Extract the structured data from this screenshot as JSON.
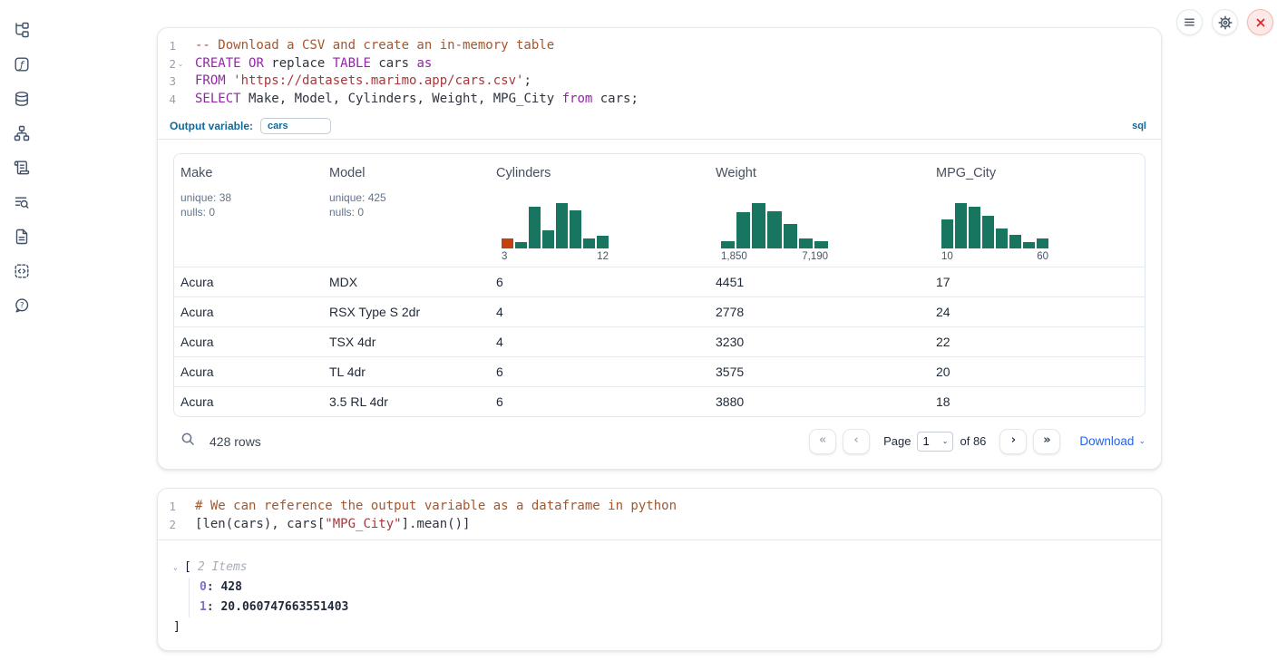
{
  "colors": {
    "hist_green": "#177560",
    "hist_orange": "#c2410c",
    "accent_blue": "#0e6a9b",
    "link_blue": "#2563eb"
  },
  "sidebar": {
    "items": [
      "file-tree-icon",
      "functions-icon",
      "database-icon",
      "dependency-graph-icon",
      "scratchpad-icon",
      "logs-icon",
      "documentation-icon",
      "snippets-icon",
      "help-icon"
    ]
  },
  "topbar": {
    "buttons": [
      "menu-icon",
      "settings-gear-icon",
      "shutdown-x-icon"
    ]
  },
  "sql_cell": {
    "gutter": [
      {
        "n": "1",
        "f": ""
      },
      {
        "n": "2",
        "f": "⌄"
      },
      {
        "n": "3",
        "f": ""
      },
      {
        "n": "4",
        "f": ""
      }
    ],
    "code": [
      [
        {
          "t": "-- Download a CSV and create an in-memory table",
          "c": "com"
        }
      ],
      [
        {
          "t": "CREATE",
          "c": "kw"
        },
        {
          "t": " "
        },
        {
          "t": "OR",
          "c": "kw"
        },
        {
          "t": " replace "
        },
        {
          "t": "TABLE",
          "c": "kw"
        },
        {
          "t": " cars "
        },
        {
          "t": "as",
          "c": "kw"
        }
      ],
      [
        {
          "t": "FROM",
          "c": "kw"
        },
        {
          "t": " "
        },
        {
          "t": "'https://datasets.marimo.app/cars.csv'",
          "c": "str"
        },
        {
          "t": ";"
        }
      ],
      [
        {
          "t": "SELECT",
          "c": "kw"
        },
        {
          "t": " Make, Model, Cylinders, Weight, MPG_City "
        },
        {
          "t": "from",
          "c": "kw"
        },
        {
          "t": " cars;"
        }
      ]
    ],
    "output_variable": {
      "label": "Output variable:",
      "value": "cars"
    },
    "language_tag": "sql",
    "table": {
      "columns": [
        {
          "name": "Make",
          "stats": [
            "unique: 38",
            "nulls: 0"
          ]
        },
        {
          "name": "Model",
          "stats": [
            "unique: 425",
            "nulls: 0"
          ]
        },
        {
          "name": "Cylinders",
          "hist": {
            "min_label": "3",
            "max_label": "12",
            "bars": [
              {
                "h": 21,
                "c": "#c2410c"
              },
              {
                "h": 13
              },
              {
                "h": 88
              },
              {
                "h": 38
              },
              {
                "h": 96
              },
              {
                "h": 81
              },
              {
                "h": 21
              },
              {
                "h": 27
              }
            ]
          }
        },
        {
          "name": "Weight",
          "hist": {
            "min_label": "1,850",
            "max_label": "7,190",
            "bars": [
              {
                "h": 15
              },
              {
                "h": 77
              },
              {
                "h": 96
              },
              {
                "h": 79
              },
              {
                "h": 52
              },
              {
                "h": 21
              },
              {
                "h": 15
              }
            ]
          }
        },
        {
          "name": "MPG_City",
          "hist": {
            "min_label": "10",
            "max_label": "60",
            "bars": [
              {
                "h": 62
              },
              {
                "h": 96
              },
              {
                "h": 88
              },
              {
                "h": 69
              },
              {
                "h": 42
              },
              {
                "h": 29
              },
              {
                "h": 13
              },
              {
                "h": 21
              }
            ]
          }
        }
      ],
      "rows": [
        [
          "Acura",
          "MDX",
          "6",
          "4451",
          "17"
        ],
        [
          "Acura",
          "RSX Type S 2dr",
          "4",
          "2778",
          "24"
        ],
        [
          "Acura",
          "TSX 4dr",
          "4",
          "3230",
          "22"
        ],
        [
          "Acura",
          "TL 4dr",
          "6",
          "3575",
          "20"
        ],
        [
          "Acura",
          "3.5 RL 4dr",
          "6",
          "3880",
          "18"
        ]
      ],
      "footer": {
        "row_count": "428 rows",
        "first_glyph": "«",
        "prev_glyph": "‹",
        "next_glyph": "›",
        "last_glyph": "»",
        "page_label": "Page",
        "page_value": "1",
        "select_chevron": "⌄",
        "of_label": "of 86",
        "download_label": "Download",
        "download_chevron": "⌄"
      }
    }
  },
  "python_cell": {
    "gutter": [
      {
        "n": "1",
        "f": ""
      },
      {
        "n": "2",
        "f": ""
      }
    ],
    "code": [
      [
        {
          "t": "# We can reference the output variable as a dataframe in python",
          "c": "com"
        }
      ],
      [
        {
          "t": "[len(cars), cars[",
          "c": "def"
        },
        {
          "t": "\"MPG_City\"",
          "c": "str"
        },
        {
          "t": "].mean()]",
          "c": "def"
        }
      ]
    ],
    "output_tree": {
      "chevron": "⌄",
      "open": "[",
      "count_label": "2 Items",
      "entries": [
        {
          "k": "0",
          "sep": ": ",
          "v": "428"
        },
        {
          "k": "1",
          "sep": ": ",
          "v": "20.060747663551403"
        }
      ],
      "close": "]"
    }
  }
}
